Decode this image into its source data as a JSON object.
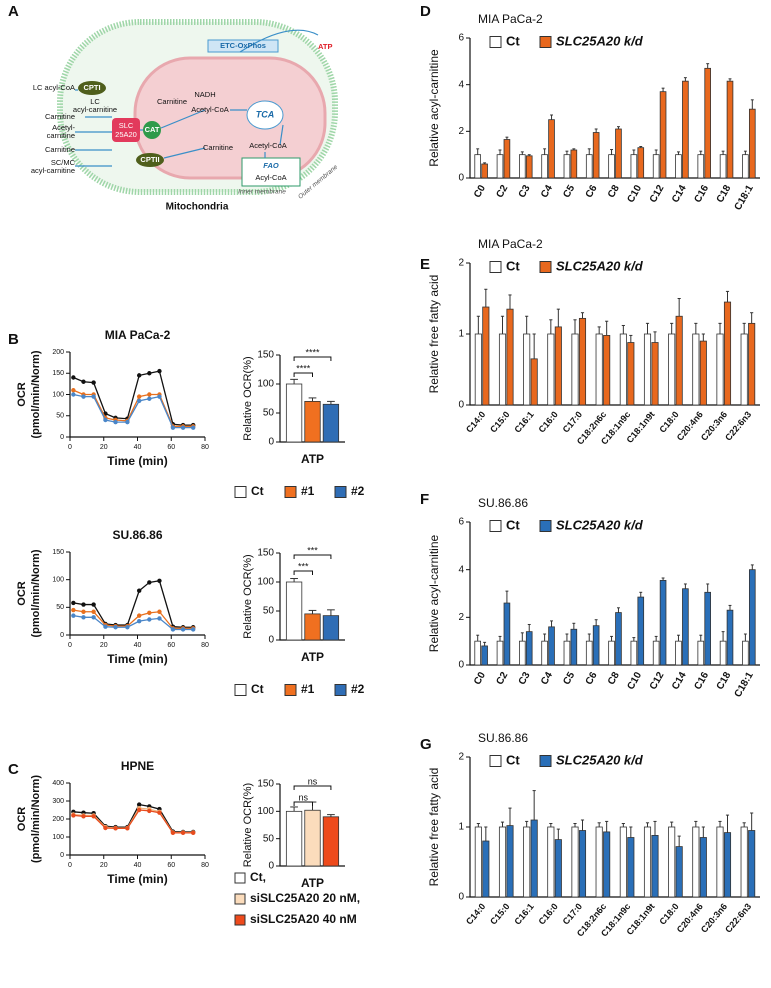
{
  "panel_labels": [
    "A",
    "B",
    "C",
    "D",
    "E",
    "F",
    "G"
  ],
  "diagram": {
    "labels": [
      "ATP",
      "ETC-OxPhos",
      "LC acyl-CoA",
      "CPTI",
      "LC",
      "acyl-carnitine",
      "Carnitine",
      "Acetyl-",
      "carnitine",
      "Carnitine",
      "SC/MC",
      "acyl-carnitine",
      "SLC",
      "25A20",
      "CAT",
      "CPTII",
      "Carnitine",
      "NADH",
      "Acetyl-CoA",
      "TCA",
      "Carnitine",
      "Acetyl-CoA",
      "FAO",
      "Acyl-CoA",
      "Inner membrane",
      "Outer membrane",
      "Mitochondria"
    ]
  },
  "chart_data": [
    {
      "type": "line",
      "title": "MIA PaCa-2",
      "xlabel": "Time (min)",
      "ylabel": [
        "OCR",
        "(pmol/min/Norm)"
      ],
      "x": [
        2,
        8,
        14,
        21,
        27,
        34,
        41,
        47,
        53,
        61,
        67,
        73
      ],
      "xlim": [
        0,
        80
      ],
      "xticks": [
        0,
        20,
        40,
        60,
        80
      ],
      "ylim": [
        0,
        200
      ],
      "yticks": [
        0,
        50,
        100,
        150,
        200
      ],
      "series": [
        {
          "name": "Ct",
          "color": "#111111",
          "values": [
            140,
            130,
            128,
            55,
            45,
            43,
            145,
            150,
            155,
            30,
            28,
            28
          ]
        },
        {
          "name": "#1",
          "color": "#e8701e",
          "values": [
            110,
            100,
            100,
            45,
            40,
            38,
            95,
            100,
            100,
            25,
            25,
            25
          ]
        },
        {
          "name": "#2",
          "color": "#4a86c8",
          "values": [
            100,
            95,
            95,
            40,
            35,
            35,
            85,
            90,
            95,
            22,
            22,
            22
          ]
        }
      ]
    },
    {
      "type": "bar",
      "xlabel": "ATP",
      "ylabel": "Relative OCR(%)",
      "categories": [
        null
      ],
      "ylim": [
        0,
        150
      ],
      "yticks": [
        0,
        50,
        100,
        150
      ],
      "legend": "bottom",
      "annotations": [
        "****",
        "****"
      ],
      "series": [
        {
          "name": "Ct",
          "color": "#ffffff",
          "values": [
            100
          ],
          "errors": [
            8
          ]
        },
        {
          "name": "#1",
          "color": "#f07020",
          "values": [
            70
          ],
          "errors": [
            6
          ]
        },
        {
          "name": "#2",
          "color": "#2f6db5",
          "values": [
            65
          ],
          "errors": [
            5
          ]
        }
      ]
    },
    {
      "type": "line",
      "title": "SU.86.86",
      "xlabel": "Time (min)",
      "ylabel": [
        "OCR",
        "(pmol/min/Norm)"
      ],
      "x": [
        2,
        8,
        14,
        21,
        27,
        34,
        41,
        47,
        53,
        61,
        67,
        73
      ],
      "xlim": [
        0,
        80
      ],
      "xticks": [
        0,
        20,
        40,
        60,
        80
      ],
      "ylim": [
        0,
        150
      ],
      "yticks": [
        0,
        50,
        100,
        150
      ],
      "series": [
        {
          "name": "Ct",
          "color": "#111111",
          "values": [
            58,
            55,
            55,
            20,
            18,
            18,
            80,
            95,
            98,
            15,
            14,
            14
          ]
        },
        {
          "name": "#1",
          "color": "#e8701e",
          "values": [
            45,
            42,
            42,
            18,
            16,
            16,
            35,
            40,
            42,
            12,
            12,
            12
          ]
        },
        {
          "name": "#2",
          "color": "#4a86c8",
          "values": [
            35,
            32,
            32,
            15,
            14,
            14,
            25,
            28,
            30,
            10,
            10,
            10
          ]
        }
      ]
    },
    {
      "type": "bar",
      "xlabel": "ATP",
      "ylabel": "Relative OCR(%)",
      "categories": [
        null
      ],
      "ylim": [
        0,
        150
      ],
      "yticks": [
        0,
        50,
        100,
        150
      ],
      "legend": "bottom",
      "annotations": [
        "***",
        "***"
      ],
      "series": [
        {
          "name": "Ct",
          "color": "#ffffff",
          "values": [
            100
          ],
          "errors": [
            6
          ]
        },
        {
          "name": "#1",
          "color": "#f07020",
          "values": [
            45
          ],
          "errors": [
            6
          ]
        },
        {
          "name": "#2",
          "color": "#2f6db5",
          "values": [
            42
          ],
          "errors": [
            10
          ]
        }
      ]
    },
    {
      "type": "line",
      "title": "HPNE",
      "xlabel": "Time (min)",
      "ylabel": [
        "OCR",
        "(pmol/min/Norm)"
      ],
      "x": [
        2,
        8,
        14,
        21,
        27,
        34,
        41,
        47,
        53,
        61,
        67,
        73
      ],
      "xlim": [
        0,
        80
      ],
      "xticks": [
        0,
        20,
        40,
        60,
        80
      ],
      "ylim": [
        0,
        400
      ],
      "yticks": [
        0,
        100,
        200,
        300,
        400
      ],
      "series": [
        {
          "name": "Ct,",
          "color": "#111111",
          "values": [
            240,
            235,
            232,
            160,
            155,
            155,
            280,
            270,
            255,
            130,
            128,
            128
          ]
        },
        {
          "name": "siSLC25A20 20 nM,",
          "color": "#f2b27a",
          "values": [
            225,
            220,
            220,
            155,
            150,
            150,
            260,
            255,
            240,
            125,
            125,
            125
          ]
        },
        {
          "name": "siSLC25A20 40 nM",
          "color": "#e84c1e",
          "values": [
            220,
            215,
            215,
            150,
            148,
            148,
            250,
            245,
            235,
            123,
            123,
            123
          ]
        }
      ]
    },
    {
      "type": "bar",
      "xlabel": "ATP",
      "ylabel": "Relative OCR(%)",
      "categories": [
        null
      ],
      "ylim": [
        0,
        150
      ],
      "yticks": [
        0,
        50,
        100,
        150
      ],
      "legend": "bottom-stacked",
      "annotations": [
        "ns",
        "ns"
      ],
      "series": [
        {
          "name": "Ct,",
          "color": "#ffffff",
          "values": [
            100
          ],
          "errors": [
            8
          ]
        },
        {
          "name": "siSLC25A20 20 nM,",
          "color": "#fbdcbc",
          "values": [
            102
          ],
          "errors": [
            15
          ]
        },
        {
          "name": "siSLC25A20 40 nM",
          "color": "#ee4a1c",
          "values": [
            90
          ],
          "errors": [
            4
          ]
        }
      ]
    },
    {
      "type": "bar",
      "title": "MIA PaCa-2",
      "ylabel": "Relative acyl-carnitine",
      "legend": "top",
      "ylim": [
        0,
        6
      ],
      "yticks": [
        0,
        2,
        4,
        6
      ],
      "categories": [
        "C0",
        "C2",
        "C3",
        "C4",
        "C5",
        "C6",
        "C8",
        "C10",
        "C12",
        "C14",
        "C16",
        "C18",
        "C18:1"
      ],
      "series": [
        {
          "name": "Ct",
          "color": "#ffffff",
          "values": [
            1,
            1,
            1,
            1,
            1,
            1,
            1,
            1,
            1,
            1,
            1,
            1,
            1
          ],
          "errors": [
            0.25,
            0.2,
            0.12,
            0.25,
            0.15,
            0.25,
            0.22,
            0.2,
            0.2,
            0.12,
            0.15,
            0.15,
            0.15
          ]
        },
        {
          "name": "SLC25A20 k/d",
          "color": "#e8681e",
          "values": [
            0.6,
            1.65,
            0.95,
            2.5,
            1.2,
            1.95,
            2.1,
            1.3,
            3.7,
            4.15,
            4.7,
            4.15,
            2.95
          ],
          "errors": [
            0.05,
            0.1,
            0.05,
            0.2,
            0.05,
            0.15,
            0.1,
            0.05,
            0.15,
            0.15,
            0.2,
            0.1,
            0.4
          ]
        }
      ]
    },
    {
      "type": "bar",
      "title": "MIA PaCa-2",
      "ylabel": "Relative free fatty acid",
      "legend": "top",
      "ylim": [
        0,
        2
      ],
      "yticks": [
        0,
        1,
        2
      ],
      "categories": [
        "C14:0",
        "C15:0",
        "C16:1",
        "C16:0",
        "C17:0",
        "C18:2n6c",
        "C18:1n9c",
        "C18:1n9t",
        "C18:0",
        "C20:4n6",
        "C20:3n6",
        "C22:6n3"
      ],
      "series": [
        {
          "name": "Ct",
          "color": "#ffffff",
          "values": [
            1,
            1,
            1,
            1,
            1,
            1,
            1,
            1,
            1,
            1,
            1,
            1
          ],
          "errors": [
            0.25,
            0.25,
            0.25,
            0.2,
            0.2,
            0.1,
            0.12,
            0.15,
            0.15,
            0.15,
            0.15,
            0.15
          ]
        },
        {
          "name": "SLC25A20 k/d",
          "color": "#e8681e",
          "values": [
            1.38,
            1.35,
            0.65,
            1.1,
            1.22,
            0.98,
            0.88,
            0.88,
            1.25,
            0.9,
            1.45,
            1.15
          ],
          "errors": [
            0.25,
            0.2,
            0.35,
            0.25,
            0.08,
            0.2,
            0.1,
            0.15,
            0.25,
            0.1,
            0.15,
            0.15
          ]
        }
      ]
    },
    {
      "type": "bar",
      "title": "SU.86.86",
      "ylabel": "Relative acyl-carnitine",
      "legend": "top",
      "ylim": [
        0,
        6
      ],
      "yticks": [
        0,
        2,
        4,
        6
      ],
      "categories": [
        "C0",
        "C2",
        "C3",
        "C4",
        "C5",
        "C6",
        "C8",
        "C10",
        "C12",
        "C14",
        "C16",
        "C18",
        "C18:1"
      ],
      "series": [
        {
          "name": "Ct",
          "color": "#ffffff",
          "values": [
            1,
            1,
            1,
            1,
            1,
            1,
            1,
            1,
            1,
            1,
            1,
            1,
            1
          ],
          "errors": [
            0.25,
            0.2,
            0.35,
            0.3,
            0.3,
            0.3,
            0.2,
            0.15,
            0.2,
            0.25,
            0.25,
            0.4,
            0.3
          ]
        },
        {
          "name": "SLC25A20 k/d",
          "color": "#2a6fb8",
          "values": [
            0.8,
            2.6,
            1.4,
            1.6,
            1.5,
            1.65,
            2.2,
            2.85,
            3.55,
            3.2,
            3.05,
            2.3,
            4.0
          ],
          "errors": [
            0.15,
            0.5,
            0.3,
            0.25,
            0.25,
            0.25,
            0.2,
            0.2,
            0.1,
            0.2,
            0.35,
            0.2,
            0.2
          ]
        }
      ]
    },
    {
      "type": "bar",
      "title": "SU.86.86",
      "ylabel": "Relative free fatty acid",
      "legend": "top",
      "ylim": [
        0,
        2
      ],
      "yticks": [
        0,
        1,
        2
      ],
      "categories": [
        "C14:0",
        "C15:0",
        "C16:1",
        "C16:0",
        "C17:0",
        "C18:2n6c",
        "C18:1n9c",
        "C18:1n9t",
        "C18:0",
        "C20:4n6",
        "C20:3n6",
        "C22:6n3"
      ],
      "series": [
        {
          "name": "Ct",
          "color": "#ffffff",
          "values": [
            1,
            1,
            1,
            1,
            1,
            1,
            1,
            1,
            1,
            1,
            1,
            1
          ],
          "errors": [
            0.05,
            0.07,
            0.08,
            0.05,
            0.05,
            0.06,
            0.05,
            0.06,
            0.07,
            0.08,
            0.08,
            0.06
          ]
        },
        {
          "name": "SLC25A20 k/d",
          "color": "#2a6fb8",
          "values": [
            0.8,
            1.02,
            1.1,
            0.82,
            0.95,
            0.93,
            0.85,
            0.88,
            0.72,
            0.85,
            0.92,
            0.95
          ],
          "errors": [
            0.2,
            0.25,
            0.42,
            0.15,
            0.15,
            0.15,
            0.15,
            0.2,
            0.15,
            0.15,
            0.25,
            0.25
          ]
        }
      ]
    }
  ]
}
